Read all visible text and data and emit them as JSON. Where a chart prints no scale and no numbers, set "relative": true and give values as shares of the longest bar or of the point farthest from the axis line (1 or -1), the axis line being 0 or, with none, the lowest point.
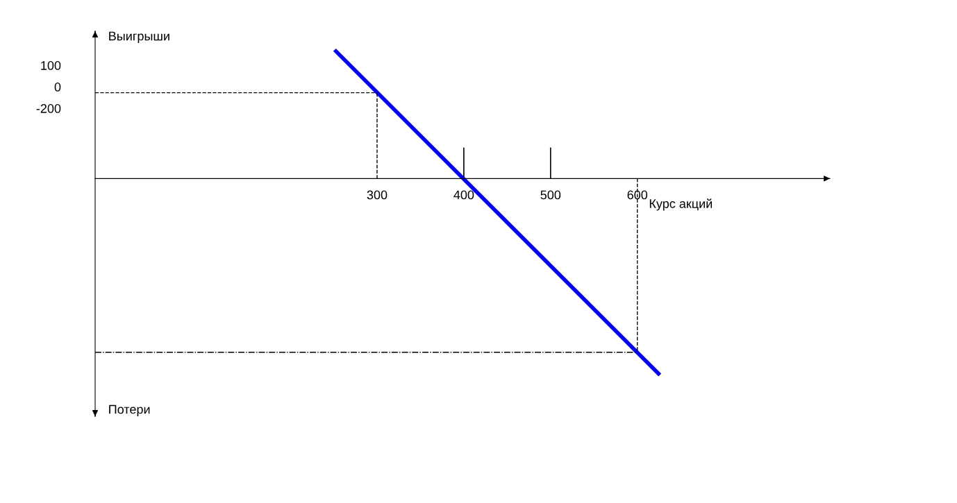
{
  "chart_data": {
    "type": "line",
    "relative": true,
    "xlabel": "Курс акций",
    "ylabel": "Выигрыши",
    "annotations": [
      "Потери",
      "100",
      "0",
      "-200"
    ],
    "xlim": [
      -25,
      822
    ],
    "xticks": [
      300,
      400,
      500,
      600
    ],
    "series": [
      {
        "color": "#0000ff",
        "values": [
          0.655,
          -1
        ],
        "x": [
          251,
          626
        ]
      }
    ],
    "ref_lines": [
      {
        "axis": "y",
        "value": 0.437,
        "color": "#000000",
        "line_style": "dashed"
      },
      {
        "axis": "x",
        "value": 300,
        "color": "#000000",
        "line_style": "dashed"
      },
      {
        "axis": "y",
        "value": -0.884,
        "color": "#000000",
        "line_style": "dashdot"
      },
      {
        "axis": "x",
        "value": 600,
        "color": "#000000",
        "line_style": "dashed"
      }
    ],
    "grid": false,
    "legend": false,
    "marker": "none",
    "line_style": "solid"
  }
}
